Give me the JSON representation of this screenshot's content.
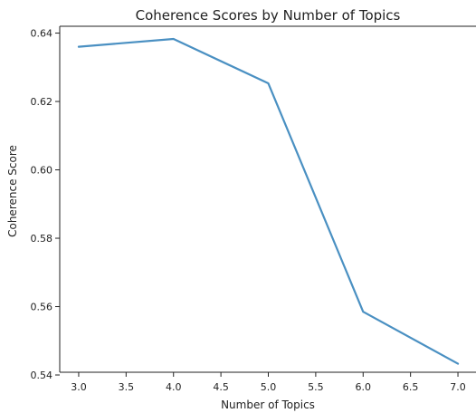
{
  "chart_data": {
    "type": "line",
    "title": "Coherence Scores by Number of Topics",
    "xlabel": "Number of Topics",
    "ylabel": "Coherence Score",
    "x": [
      3.0,
      4.0,
      5.0,
      6.0,
      7.0
    ],
    "series": [
      {
        "values": [
          0.636,
          0.6383,
          0.6253,
          0.5585,
          0.5433
        ]
      }
    ],
    "xlim": [
      2.8,
      7.2
    ],
    "ylim": [
      0.5408,
      0.642
    ],
    "xticks": [
      "3.0",
      "3.5",
      "4.0",
      "4.5",
      "5.0",
      "5.5",
      "6.0",
      "6.5",
      "7.0"
    ],
    "yticks": [
      "0.54",
      "0.56",
      "0.58",
      "0.60",
      "0.62",
      "0.64"
    ],
    "grid": false,
    "line_color": "#4a90c2"
  }
}
